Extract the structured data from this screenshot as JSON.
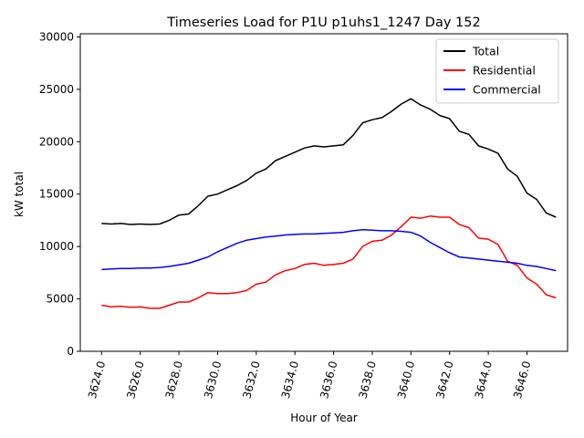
{
  "chart_data": {
    "type": "line",
    "title": "Timeseries Load for P1U p1uhs1_1247  Day 152",
    "xlabel": "Hour of Year",
    "ylabel": "kW total",
    "xlim": [
      3622.9,
      3648.1
    ],
    "ylim": [
      0,
      30300
    ],
    "xticks": [
      3624.0,
      3626.0,
      3628.0,
      3630.0,
      3632.0,
      3634.0,
      3636.0,
      3638.0,
      3640.0,
      3642.0,
      3644.0,
      3646.0
    ],
    "xtick_labels": [
      "3624.0",
      "3626.0",
      "3628.0",
      "3630.0",
      "3632.0",
      "3634.0",
      "3636.0",
      "3638.0",
      "3640.0",
      "3642.0",
      "3644.0",
      "3646.0"
    ],
    "yticks": [
      0,
      5000,
      10000,
      15000,
      20000,
      25000,
      30000
    ],
    "ytick_labels": [
      "0",
      "5000",
      "10000",
      "15000",
      "20000",
      "25000",
      "30000"
    ],
    "grid": false,
    "legend_position": "top-right",
    "series": [
      {
        "name": "Total",
        "color": "#000000",
        "x": [
          3624.0,
          3624.5,
          3625.0,
          3625.5,
          3626.0,
          3626.5,
          3627.0,
          3627.5,
          3628.0,
          3628.5,
          3629.0,
          3629.5,
          3630.0,
          3630.5,
          3631.0,
          3631.5,
          3632.0,
          3632.5,
          3633.0,
          3633.5,
          3634.0,
          3634.5,
          3635.0,
          3635.5,
          3636.0,
          3636.5,
          3637.0,
          3637.5,
          3638.0,
          3638.5,
          3639.0,
          3639.5,
          3640.0,
          3640.5,
          3641.0,
          3641.5,
          3642.0,
          3642.5,
          3643.0,
          3643.5,
          3644.0,
          3644.5,
          3645.0,
          3645.5,
          3646.0,
          3646.5,
          3647.0,
          3647.5
        ],
        "values": [
          12200,
          12150,
          12200,
          12100,
          12150,
          12100,
          12150,
          12500,
          13000,
          13100,
          13900,
          14800,
          15000,
          15400,
          15800,
          16300,
          17000,
          17400,
          18200,
          18600,
          19000,
          19400,
          19600,
          19500,
          19600,
          19700,
          20600,
          21800,
          22100,
          22300,
          22900,
          23600,
          24100,
          23500,
          23100,
          22500,
          22200,
          21000,
          20700,
          19600,
          19300,
          18900,
          17400,
          16700,
          15100,
          14500,
          13200,
          12800
        ]
      },
      {
        "name": "Residential",
        "color": "#ff0000",
        "x": [
          3624.0,
          3624.5,
          3625.0,
          3625.5,
          3626.0,
          3626.5,
          3627.0,
          3627.5,
          3628.0,
          3628.5,
          3629.0,
          3629.5,
          3630.0,
          3630.5,
          3631.0,
          3631.5,
          3632.0,
          3632.5,
          3633.0,
          3633.5,
          3634.0,
          3634.5,
          3635.0,
          3635.5,
          3636.0,
          3636.5,
          3637.0,
          3637.5,
          3638.0,
          3638.5,
          3639.0,
          3639.5,
          3640.0,
          3640.5,
          3641.0,
          3641.5,
          3642.0,
          3642.5,
          3643.0,
          3643.5,
          3644.0,
          3644.5,
          3645.0,
          3645.5,
          3646.0,
          3646.5,
          3647.0,
          3647.5
        ],
        "values": [
          4400,
          4250,
          4300,
          4200,
          4250,
          4100,
          4100,
          4400,
          4700,
          4700,
          5100,
          5600,
          5500,
          5500,
          5600,
          5800,
          6400,
          6600,
          7300,
          7700,
          7900,
          8300,
          8400,
          8200,
          8300,
          8400,
          8800,
          10000,
          10500,
          10600,
          11100,
          11900,
          12800,
          12700,
          12900,
          12800,
          12800,
          12100,
          11800,
          10800,
          10700,
          10200,
          8600,
          8200,
          7000,
          6400,
          5400,
          5100
        ]
      },
      {
        "name": "Commercial",
        "color": "#0000ff",
        "x": [
          3624.0,
          3624.5,
          3625.0,
          3625.5,
          3626.0,
          3626.5,
          3627.0,
          3627.5,
          3628.0,
          3628.5,
          3629.0,
          3629.5,
          3630.0,
          3630.5,
          3631.0,
          3631.5,
          3632.0,
          3632.5,
          3633.0,
          3633.5,
          3634.0,
          3634.5,
          3635.0,
          3635.5,
          3636.0,
          3636.5,
          3637.0,
          3637.5,
          3638.0,
          3638.5,
          3639.0,
          3639.5,
          3640.0,
          3640.5,
          3641.0,
          3641.5,
          3642.0,
          3642.5,
          3643.0,
          3643.5,
          3644.0,
          3644.5,
          3645.0,
          3645.5,
          3646.0,
          3646.5,
          3647.0,
          3647.5
        ],
        "values": [
          7800,
          7850,
          7900,
          7900,
          7950,
          7950,
          8000,
          8100,
          8250,
          8400,
          8700,
          9000,
          9500,
          9900,
          10300,
          10600,
          10750,
          10900,
          11000,
          11100,
          11150,
          11200,
          11200,
          11250,
          11300,
          11350,
          11500,
          11600,
          11550,
          11500,
          11500,
          11450,
          11350,
          11000,
          10400,
          9900,
          9400,
          9000,
          8900,
          8800,
          8700,
          8600,
          8500,
          8400,
          8200,
          8100,
          7900,
          7700
        ]
      }
    ]
  }
}
